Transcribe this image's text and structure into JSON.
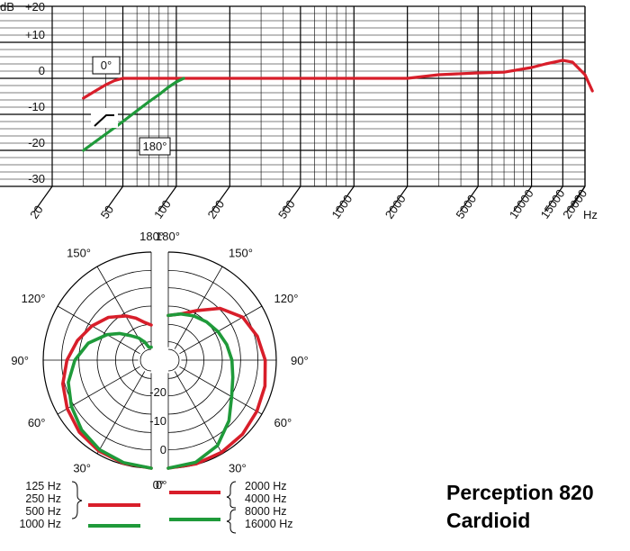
{
  "colors": {
    "red": "#d81e2a",
    "green": "#1f9a3a",
    "black": "#111111"
  },
  "frequency_response": {
    "y_unit": "dB",
    "y_tick_labels": [
      "+20",
      "+10",
      "0",
      "-10",
      "-20",
      "-30"
    ],
    "y_tick_values": [
      20,
      10,
      0,
      -10,
      -20,
      -30
    ],
    "x_unit": "Hz",
    "x_tick_labels": [
      "20",
      "50",
      "100",
      "200",
      "500",
      "1000",
      "2000",
      "5000",
      "10000",
      "15000",
      "20000"
    ],
    "x_tick_values": [
      20,
      50,
      100,
      200,
      500,
      1000,
      2000,
      5000,
      10000,
      15000,
      20000
    ],
    "annotation_0": "0°",
    "annotation_180": "180°"
  },
  "polar": {
    "angle_labels_left": [
      "180°",
      "150°",
      "120°",
      "90°",
      "60°",
      "30°",
      "0°"
    ],
    "angle_labels_right": [
      "180°",
      "150°",
      "120°",
      "90°",
      "60°",
      "30°",
      "0°"
    ],
    "db_labels": [
      "-20",
      "-10",
      "0"
    ]
  },
  "legend": {
    "left_red": [
      "125 Hz",
      "250 Hz",
      "500 Hz"
    ],
    "left_green": [
      "1000 Hz"
    ],
    "right_red": [
      "2000 Hz",
      "4000 Hz"
    ],
    "right_green": [
      "8000 Hz",
      "16000 Hz"
    ]
  },
  "product": {
    "name": "Perception 820",
    "pattern": "Cardioid"
  },
  "chart_data": [
    {
      "type": "line",
      "xscale": "log",
      "xlim": [
        20,
        20000
      ],
      "ylim": [
        -30,
        20
      ],
      "grid": true,
      "xlabel": "Hz",
      "ylabel": "dB",
      "series": [
        {
          "color": "red",
          "x": [
            30,
            35,
            40,
            45,
            50,
            60,
            80,
            100,
            200,
            500,
            1000,
            2000,
            3000,
            5000,
            7000,
            10000,
            12000,
            15000,
            17000,
            20000,
            22000
          ],
          "y": [
            -5.5,
            -3.5,
            -1.8,
            -0.6,
            0,
            0,
            0,
            0,
            0,
            0,
            0,
            0,
            1,
            1.5,
            1.7,
            3,
            4,
            5,
            4.5,
            1,
            -3.5
          ]
        },
        {
          "color": "green",
          "x": [
            30,
            40,
            50,
            60,
            70,
            80,
            90,
            100,
            110
          ],
          "y": [
            -20,
            -15.5,
            -12,
            -9,
            -6.5,
            -4.5,
            -2.5,
            -1,
            0
          ]
        }
      ]
    },
    {
      "type": "polar",
      "rlim": [
        -30,
        0
      ],
      "series": [
        {
          "color": "red",
          "side": "left",
          "angle": [
            0,
            15,
            30,
            45,
            60,
            75,
            90,
            105,
            120,
            135,
            150,
            160,
            170,
            180
          ],
          "r": [
            0,
            -0.4,
            -1,
            -2,
            -3.5,
            -5.2,
            -7.5,
            -10,
            -12.5,
            -15,
            -18,
            -20,
            -22,
            -23
          ]
        },
        {
          "color": "green",
          "side": "left",
          "angle": [
            0,
            15,
            30,
            45,
            60,
            75,
            90,
            105,
            120,
            130,
            140,
            150,
            160,
            170,
            180
          ],
          "r": [
            0,
            -0.6,
            -1.5,
            -3,
            -5,
            -7,
            -10,
            -13.5,
            -18,
            -21,
            -24,
            -26,
            -28,
            -30,
            -30
          ]
        },
        {
          "color": "red",
          "side": "right",
          "angle": [
            0,
            15,
            30,
            45,
            60,
            75,
            90,
            105,
            120,
            135,
            150,
            165,
            180
          ],
          "r": [
            0,
            -0.2,
            -0.5,
            -1,
            -1.8,
            -2.5,
            -3.5,
            -5,
            -7,
            -11,
            -16,
            -19,
            -20
          ]
        },
        {
          "color": "green",
          "side": "right",
          "angle": [
            0,
            15,
            30,
            45,
            60,
            75,
            90,
            105,
            120,
            135,
            150,
            165,
            180
          ],
          "r": [
            0,
            -0.7,
            -3,
            -7,
            -11,
            -13,
            -14,
            -15,
            -16,
            -17,
            -18,
            -19,
            -20
          ]
        }
      ]
    }
  ]
}
